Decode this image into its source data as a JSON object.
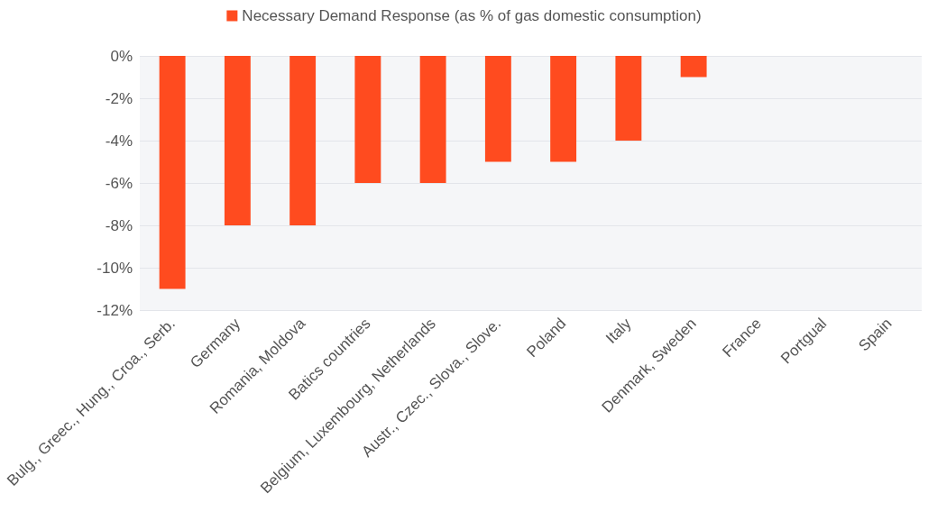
{
  "chart_data": {
    "type": "bar",
    "categories": [
      "Bulg., Greec., Hung., Croa., Serb.",
      "Germany",
      "Romania, Moldova",
      "Batics countries",
      "Belgium, Luxembourg, Netherlands",
      "Austr., Czec., Slova., Slove.",
      "Poland",
      "Italy",
      "Denmark, Sweden",
      "France",
      "Portgual",
      "Spain"
    ],
    "series": [
      {
        "name": "Necessary Demand Response (as % of gas domestic consumption)",
        "color": "#ff4b1f",
        "values": [
          -11,
          -8,
          -8,
          -6,
          -6,
          -5,
          -5,
          -4,
          -1,
          0,
          0,
          0
        ]
      }
    ],
    "ylim": [
      -12,
      0
    ],
    "yticks": [
      {
        "value": 0,
        "label": "0%"
      },
      {
        "value": -2,
        "label": "-2%"
      },
      {
        "value": -4,
        "label": "-4%"
      },
      {
        "value": -6,
        "label": "-6%"
      },
      {
        "value": -8,
        "label": "-8%"
      },
      {
        "value": -10,
        "label": "-10%"
      },
      {
        "value": -12,
        "label": "-12%"
      }
    ],
    "grid": "y",
    "legend": "top"
  }
}
